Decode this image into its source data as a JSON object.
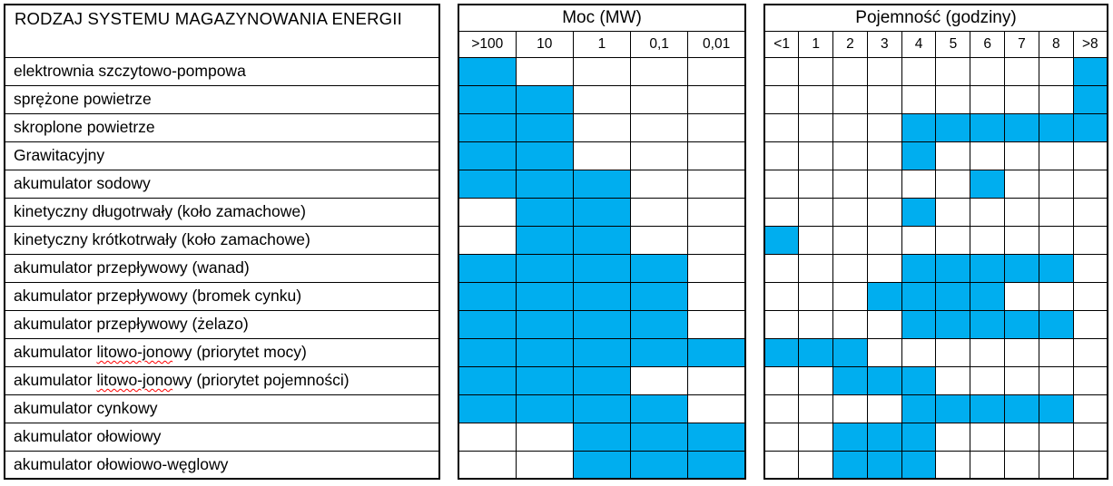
{
  "fill_color": "#00AEEF",
  "labels": {
    "header": "RODZAJ SYSTEMU MAGAZYNOWANIA ENERGII"
  },
  "moc": {
    "title": "Moc (MW)",
    "columns": [
      ">100",
      "10",
      "1",
      "0,1",
      "0,01"
    ]
  },
  "pojemnosc": {
    "title": "Pojemność (godziny)",
    "columns": [
      "<1",
      "1",
      "2",
      "3",
      "4",
      "5",
      "6",
      "7",
      "8",
      ">8"
    ]
  },
  "rows": [
    {
      "label": "elektrownia szczytowo-pompowa",
      "moc": [
        1,
        0,
        0,
        0,
        0
      ],
      "pojemnosc": [
        0,
        0,
        0,
        0,
        0,
        0,
        0,
        0,
        0,
        1
      ]
    },
    {
      "label": "sprężone powietrze",
      "moc": [
        1,
        1,
        0,
        0,
        0
      ],
      "pojemnosc": [
        0,
        0,
        0,
        0,
        0,
        0,
        0,
        0,
        0,
        1
      ]
    },
    {
      "label": "skroplone powietrze",
      "moc": [
        1,
        1,
        0,
        0,
        0
      ],
      "pojemnosc": [
        0,
        0,
        0,
        0,
        1,
        1,
        1,
        1,
        1,
        1
      ]
    },
    {
      "label": "Grawitacyjny",
      "moc": [
        1,
        1,
        0,
        0,
        0
      ],
      "pojemnosc": [
        0,
        0,
        0,
        0,
        1,
        0,
        0,
        0,
        0,
        0
      ]
    },
    {
      "label": "akumulator sodowy",
      "moc": [
        1,
        1,
        1,
        0,
        0
      ],
      "pojemnosc": [
        0,
        0,
        0,
        0,
        0,
        0,
        1,
        0,
        0,
        0
      ]
    },
    {
      "label": "kinetyczny długotrwały (koło zamachowe)",
      "moc": [
        0,
        1,
        1,
        0,
        0
      ],
      "pojemnosc": [
        0,
        0,
        0,
        0,
        1,
        0,
        0,
        0,
        0,
        0
      ]
    },
    {
      "label": "kinetyczny krótkotrwały (koło zamachowe)",
      "moc": [
        0,
        1,
        1,
        0,
        0
      ],
      "pojemnosc": [
        1,
        0,
        0,
        0,
        0,
        0,
        0,
        0,
        0,
        0
      ]
    },
    {
      "label": "akumulator przepływowy (wanad)",
      "moc": [
        1,
        1,
        1,
        1,
        0
      ],
      "pojemnosc": [
        0,
        0,
        0,
        0,
        1,
        1,
        1,
        1,
        1,
        0
      ]
    },
    {
      "label": "akumulator przepływowy (bromek cynku)",
      "moc": [
        1,
        1,
        1,
        1,
        0
      ],
      "pojemnosc": [
        0,
        0,
        0,
        1,
        1,
        1,
        1,
        0,
        0,
        0
      ]
    },
    {
      "label": "akumulator przepływowy (żelazo)",
      "moc": [
        1,
        1,
        1,
        1,
        0
      ],
      "pojemnosc": [
        0,
        0,
        0,
        0,
        1,
        1,
        1,
        1,
        1,
        0
      ]
    },
    {
      "label": "akumulator litowo-jonowy (priorytet mocy)",
      "squiggle": "litowo-jono",
      "moc": [
        1,
        1,
        1,
        1,
        1
      ],
      "pojemnosc": [
        1,
        1,
        1,
        0,
        0,
        0,
        0,
        0,
        0,
        0
      ]
    },
    {
      "label": "akumulator litowo-jonowy (priorytet pojemności)",
      "squiggle": "litowo-jono",
      "moc": [
        1,
        1,
        1,
        0,
        0
      ],
      "pojemnosc": [
        0,
        0,
        1,
        1,
        1,
        0,
        0,
        0,
        0,
        0
      ]
    },
    {
      "label": "akumulator cynkowy",
      "moc": [
        1,
        1,
        1,
        1,
        0
      ],
      "pojemnosc": [
        0,
        0,
        0,
        0,
        1,
        1,
        1,
        1,
        1,
        0
      ]
    },
    {
      "label": "akumulator ołowiowy",
      "moc": [
        0,
        0,
        1,
        1,
        1
      ],
      "pojemnosc": [
        0,
        0,
        1,
        1,
        1,
        0,
        0,
        0,
        0,
        0
      ]
    },
    {
      "label": "akumulator ołowiowo-węglowy",
      "moc": [
        0,
        0,
        1,
        1,
        1
      ],
      "pojemnosc": [
        0,
        0,
        1,
        1,
        1,
        0,
        0,
        0,
        0,
        0
      ]
    }
  ]
}
